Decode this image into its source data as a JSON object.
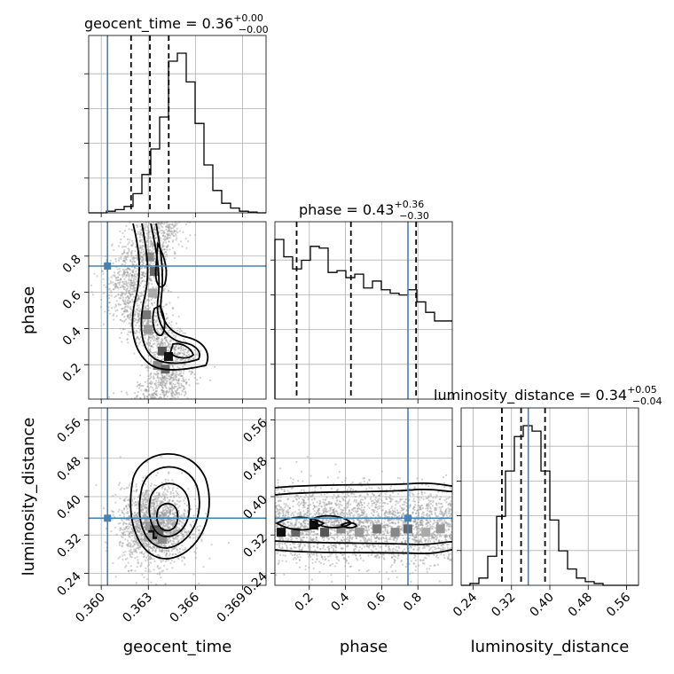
{
  "parameters": [
    "geocent_time",
    "phase",
    "luminosity_distance"
  ],
  "titles": {
    "geocent_time": {
      "name": "geocent_time",
      "median": "0.36",
      "plus": "+0.00",
      "minus": "−0.00"
    },
    "phase": {
      "name": "phase",
      "median": "0.43",
      "plus": "+0.36",
      "minus": "−0.30"
    },
    "luminosity_distance": {
      "name": "luminosity_distance",
      "median": "0.34",
      "plus": "+0.05",
      "minus": "−0.04"
    }
  },
  "axis_labels": {
    "geocent_time": "geocent_time",
    "phase": "phase",
    "luminosity_distance": "luminosity_distance"
  },
  "colors": {
    "truth": "#4682b4",
    "hist": "#000000",
    "points": "#9a9a9a"
  },
  "chart_data": {
    "type": "corner",
    "ranges": {
      "geocent_time": [
        0.3592,
        0.3705
      ],
      "phase": [
        0.01,
        0.99
      ],
      "luminosity_distance": [
        0.215,
        0.585
      ]
    },
    "ticks": {
      "geocent_time": [
        0.36,
        0.363,
        0.366,
        0.369
      ],
      "phase_y": [
        0.2,
        0.4,
        0.6,
        0.8
      ],
      "phase_x": [
        0.2,
        0.4,
        0.6,
        0.8
      ],
      "luminosity_distance": [
        0.24,
        0.32,
        0.4,
        0.48,
        0.56
      ]
    },
    "tick_labels": {
      "geocent_time": [
        "0.360",
        "0.363",
        "0.366",
        "0.369"
      ],
      "phase": [
        "0.2",
        "0.4",
        "0.6",
        "0.8"
      ],
      "luminosity_distance": [
        "0.24",
        "0.32",
        "0.40",
        "0.48",
        "0.56"
      ]
    },
    "truths": {
      "geocent_time": 0.3604,
      "phase": 0.745,
      "luminosity_distance": 0.355
    },
    "quantiles": {
      "geocent_time": [
        0.3619,
        0.3631,
        0.3643
      ],
      "phase": [
        0.13,
        0.43,
        0.79
      ],
      "luminosity_distance": [
        0.3,
        0.34,
        0.39
      ]
    },
    "histograms": {
      "geocent_time": {
        "edges_start": 0.3592,
        "bin_width": 0.000565,
        "counts": [
          0,
          0,
          1,
          2,
          4,
          12,
          24,
          40,
          60,
          95,
          100,
          82,
          56,
          30,
          14,
          6,
          3,
          1,
          0.5,
          0
        ]
      },
      "phase": {
        "edges_start": 0.01,
        "bin_width": 0.049,
        "counts": [
          92,
          82,
          75,
          80,
          88,
          87,
          73,
          74,
          70,
          72,
          64,
          68,
          63,
          61,
          60,
          63,
          56,
          50,
          45,
          45
        ]
      },
      "luminosity_distance": {
        "edges_start": 0.215,
        "bin_width": 0.0185,
        "counts": [
          0,
          1,
          4,
          16,
          38,
          63,
          82,
          88,
          85,
          63,
          36,
          19,
          9,
          4,
          2,
          1,
          0,
          0,
          0,
          0
        ]
      }
    },
    "grid": true
  }
}
